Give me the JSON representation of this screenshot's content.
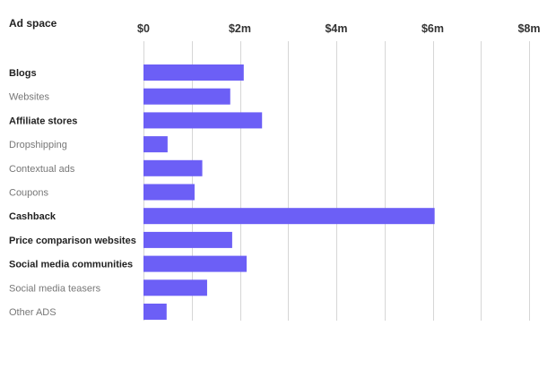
{
  "chart_data": {
    "type": "bar",
    "orientation": "horizontal",
    "corner_label": "Ad space",
    "x_ticks": [
      "$0",
      "$2m",
      "$4m",
      "$6m",
      "$8m"
    ],
    "x_tick_values": [
      0,
      2,
      4,
      6,
      8
    ],
    "xlim": [
      0,
      8
    ],
    "unit": "$ millions",
    "grid": true,
    "colors": {
      "bar": "#6c5ff6",
      "grid": "#d6d6d6"
    },
    "categories": [
      "Blogs",
      "Websites",
      "Affiliate stores",
      "Dropshipping",
      "Contextual ads",
      "Coupons",
      "Cashback",
      "Price comparison websites",
      "Social media communities",
      "Social media teasers",
      "Other ADS"
    ],
    "emphasis": [
      true,
      false,
      true,
      false,
      false,
      false,
      true,
      true,
      true,
      false,
      false
    ],
    "values": [
      2.08,
      1.8,
      2.46,
      0.5,
      1.22,
      1.06,
      6.04,
      1.84,
      2.14,
      1.32,
      0.48
    ]
  }
}
